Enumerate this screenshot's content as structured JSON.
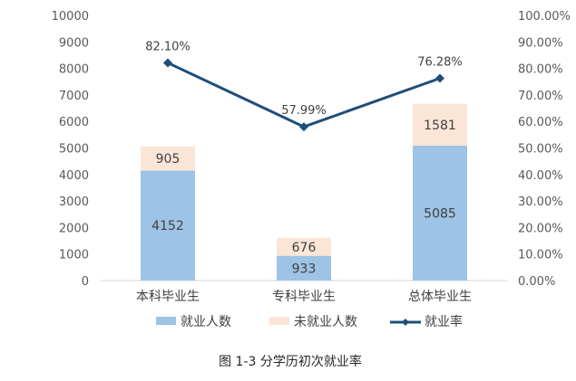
{
  "chart_data": {
    "type": "bar",
    "stacked": true,
    "categories": [
      "本科毕业生",
      "专科毕业生",
      "总体毕业生"
    ],
    "series": [
      {
        "name": "就业人数",
        "type": "bar",
        "axis": "left",
        "color": "#9DC3E6",
        "label_color": "#404040",
        "values": [
          4152,
          933,
          5085
        ]
      },
      {
        "name": "未就业人数",
        "type": "bar",
        "axis": "left",
        "color": "#FBE5D6",
        "label_color": "#404040",
        "values": [
          905,
          676,
          1581
        ]
      },
      {
        "name": "就业率",
        "type": "line",
        "axis": "right",
        "color": "#1F4E79",
        "values": [
          82.1,
          57.99,
          76.28
        ],
        "labels": [
          "82.10%",
          "57.99%",
          "76.28%"
        ]
      }
    ],
    "ylim": [
      0,
      10000
    ],
    "yticks": [
      "0",
      "1000",
      "2000",
      "3000",
      "4000",
      "5000",
      "6000",
      "7000",
      "8000",
      "9000",
      "10000"
    ],
    "y2lim": [
      0,
      100
    ],
    "y2ticks": [
      "0.00%",
      "10.00%",
      "20.00%",
      "30.00%",
      "40.00%",
      "50.00%",
      "60.00%",
      "70.00%",
      "80.00%",
      "90.00%",
      "100.00%"
    ],
    "grid": false,
    "legend_position": "bottom",
    "caption": "图 1-3  分学历初次就业率"
  }
}
